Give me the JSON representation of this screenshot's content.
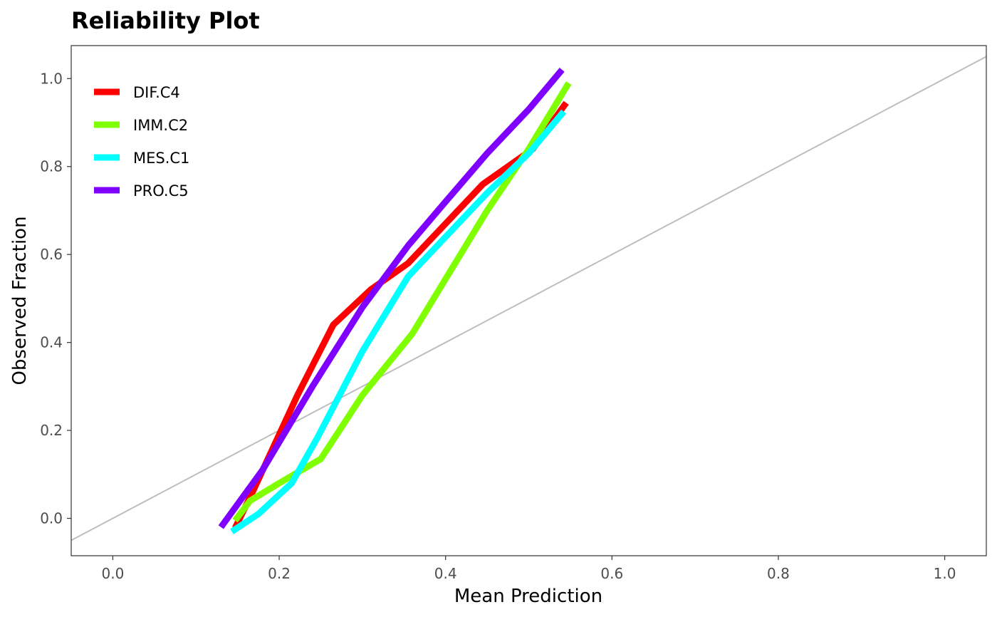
{
  "chart_data": {
    "type": "line",
    "title": "Reliability Plot",
    "xlabel": "Mean Prediction",
    "ylabel": "Observed Fraction",
    "xlim": [
      -0.05,
      1.05
    ],
    "ylim": [
      -0.085,
      1.075
    ],
    "x_ticks": [
      0.0,
      0.2,
      0.4,
      0.6,
      0.8,
      1.0
    ],
    "x_tick_labels": [
      "0.0",
      "0.2",
      "0.4",
      "0.6",
      "0.8",
      "1.0"
    ],
    "y_ticks": [
      0.0,
      0.2,
      0.4,
      0.6,
      0.8,
      1.0
    ],
    "y_tick_labels": [
      "0.0",
      "0.2",
      "0.4",
      "0.6",
      "0.8",
      "1.0"
    ],
    "grid": false,
    "legend_position": "top-left",
    "reference_line": {
      "x": [
        -0.05,
        1.05
      ],
      "y": [
        -0.05,
        1.05
      ],
      "color": "#bebebe"
    },
    "series": [
      {
        "name": "DIF.C4",
        "color": "#ff0000",
        "x": [
          0.147,
          0.168,
          0.222,
          0.265,
          0.31,
          0.355,
          0.445,
          0.505,
          0.545
        ],
        "y": [
          -0.022,
          0.06,
          0.28,
          0.44,
          0.52,
          0.58,
          0.76,
          0.84,
          0.945
        ]
      },
      {
        "name": "IMM.C2",
        "color": "#80ff00",
        "x": [
          0.147,
          0.165,
          0.2,
          0.25,
          0.3,
          0.36,
          0.45,
          0.5,
          0.548
        ],
        "y": [
          -0.005,
          0.04,
          0.08,
          0.135,
          0.28,
          0.42,
          0.7,
          0.84,
          0.99
        ]
      },
      {
        "name": "MES.C1",
        "color": "#00ffff",
        "x": [
          0.143,
          0.175,
          0.215,
          0.245,
          0.3,
          0.355,
          0.45,
          0.5,
          0.542
        ],
        "y": [
          -0.03,
          0.01,
          0.08,
          0.18,
          0.38,
          0.55,
          0.74,
          0.83,
          0.925
        ]
      },
      {
        "name": "PRO.C5",
        "color": "#8000ff",
        "x": [
          0.13,
          0.18,
          0.24,
          0.3,
          0.355,
          0.4,
          0.45,
          0.5,
          0.54
        ],
        "y": [
          -0.02,
          0.11,
          0.3,
          0.48,
          0.62,
          0.72,
          0.83,
          0.93,
          1.02
        ]
      }
    ]
  }
}
